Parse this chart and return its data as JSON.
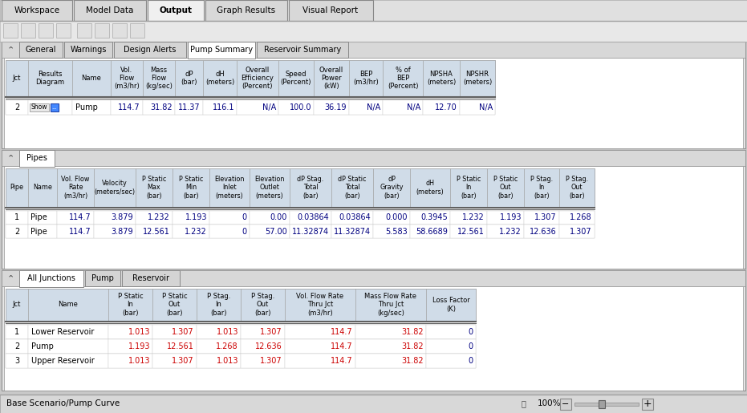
{
  "window_bg": "#c8c8c8",
  "panel_bg": "#e8e8e8",
  "tab_bar_bg": "#d8d8d8",
  "active_tab_bg": "#ffffff",
  "inactive_tab_bg": "#d0d0d0",
  "header_bg": "#d0dce8",
  "row_bg": "#ffffff",
  "grid_color": "#c0c0c0",
  "border_color": "#a0a0a0",
  "dark_border": "#666666",
  "top_tabs": [
    "Workspace",
    "Model Data",
    "Output",
    "Graph Results",
    "Visual Report"
  ],
  "active_top_tab": "Output",
  "top_tab_widths": [
    88,
    90,
    70,
    102,
    105
  ],
  "section1_tabs": [
    "General",
    "Warnings",
    "Design Alerts",
    "Pump Summary",
    "Reservoir Summary"
  ],
  "active_section1_tab": "Pump Summary",
  "pump_header": [
    "Jct",
    "Results\nDiagram",
    "Name",
    "Vol.\nFlow\n(m3/hr)",
    "Mass\nFlow\n(kg/sec)",
    "dP\n(bar)",
    "dH\n(meters)",
    "Overall\nEfficiency\n(Percent)",
    "Speed\n(Percent)",
    "Overall\nPower\n(kW)",
    "BEP\n(m3/hr)",
    "% of\nBEP\n(Percent)",
    "NPSHA\n(meters)",
    "NPSHR\n(meters)"
  ],
  "pump_col_widths": [
    28,
    55,
    48,
    40,
    40,
    35,
    42,
    52,
    44,
    44,
    42,
    50,
    46,
    44
  ],
  "pump_rows": [
    [
      "2",
      "Show■Pump",
      "Pump",
      "114.7",
      "31.82",
      "11.37",
      "116.1",
      "N/A",
      "100.0",
      "36.19",
      "N/A",
      "N/A",
      "12.70",
      "N/A"
    ]
  ],
  "section2_tabs": [
    "Pipes"
  ],
  "active_section2_tab": "Pipes",
  "pipes_header": [
    "Pipe",
    "Name",
    "Vol. Flow\nRate\n(m3/hr)",
    "Velocity\n(meters/sec)",
    "P Static\nMax\n(bar)",
    "P Static\nMin\n(bar)",
    "Elevation\nInlet\n(meters)",
    "Elevation\nOutlet\n(meters)",
    "dP Stag.\nTotal\n(bar)",
    "dP Static\nTotal\n(bar)",
    "dP\nGravity\n(bar)",
    "dH\n(meters)",
    "P Static\nIn\n(bar)",
    "P Static\nOut\n(bar)",
    "P Stag.\nIn\n(bar)",
    "P Stag.\nOut\n(bar)"
  ],
  "pipes_col_widths": [
    28,
    36,
    46,
    52,
    46,
    46,
    50,
    50,
    52,
    52,
    46,
    50,
    46,
    46,
    44,
    44
  ],
  "pipes_rows": [
    [
      "1",
      "Pipe",
      "114.7",
      "3.879",
      "1.232",
      "1.193",
      "0",
      "0.00",
      "0.03864",
      "0.03864",
      "0.000",
      "0.3945",
      "1.232",
      "1.193",
      "1.307",
      "1.268"
    ],
    [
      "2",
      "Pipe",
      "114.7",
      "3.879",
      "12.561",
      "1.232",
      "0",
      "57.00",
      "11.32874",
      "11.32874",
      "5.583",
      "58.6689",
      "12.561",
      "1.232",
      "12.636",
      "1.307"
    ]
  ],
  "section3_tabs": [
    "All Junctions",
    "Pump",
    "Reservoir"
  ],
  "active_section3_tab": "All Junctions",
  "jct_header": [
    "Jct",
    "Name",
    "P Static\nIn\n(bar)",
    "P Static\nOut\n(bar)",
    "P Stag.\nIn\n(bar)",
    "P Stag.\nOut\n(bar)",
    "Vol. Flow Rate\nThru Jct\n(m3/hr)",
    "Mass Flow Rate\nThru Jct\n(kg/sec)",
    "Loss Factor\n(K)"
  ],
  "jct_col_widths": [
    28,
    100,
    55,
    55,
    55,
    55,
    88,
    88,
    62
  ],
  "jct_rows": [
    [
      "1",
      "Lower Reservoir",
      "1.013",
      "1.307",
      "1.013",
      "1.307",
      "114.7",
      "31.82",
      "0"
    ],
    [
      "2",
      "Pump",
      "1.193",
      "12.561",
      "1.268",
      "12.636",
      "114.7",
      "31.82",
      "0"
    ],
    [
      "3",
      "Upper Reservoir",
      "1.013",
      "1.307",
      "1.013",
      "1.307",
      "114.7",
      "31.82",
      "0"
    ]
  ],
  "status_text": "Base Scenario/Pump Curve",
  "zoom_text": "100%"
}
